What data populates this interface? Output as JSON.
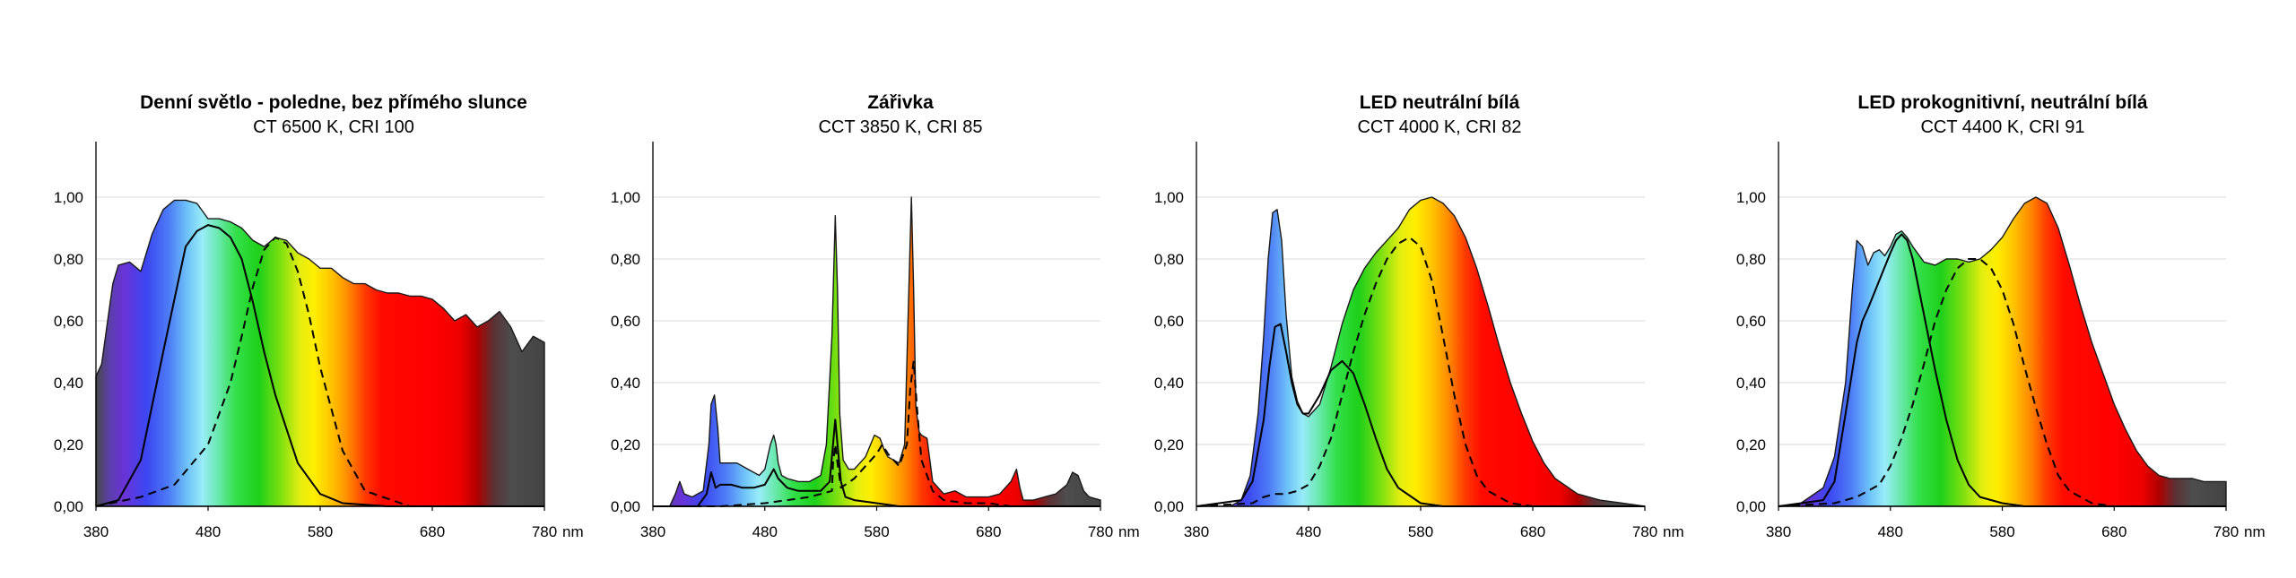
{
  "chart_data": [
    {
      "type": "area",
      "title": "Denní světlo - poledne, bez přímého slunce",
      "subtitle": "CT 6500 K, CRI 100",
      "x_ticks": [
        "380",
        "480",
        "580",
        "680",
        "780"
      ],
      "x_unit": "nm",
      "y_ticks": [
        "0,00",
        "0,20",
        "0,40",
        "0,60",
        "0,80",
        "1,00"
      ],
      "xlim": [
        380,
        780
      ],
      "ylim": [
        0,
        1.15
      ],
      "grid": true,
      "spectrum": {
        "x": [
          380,
          385,
          395,
          400,
          410,
          420,
          430,
          440,
          450,
          460,
          470,
          480,
          490,
          500,
          510,
          520,
          530,
          540,
          550,
          560,
          570,
          580,
          590,
          600,
          610,
          620,
          630,
          640,
          650,
          660,
          670,
          680,
          690,
          700,
          710,
          720,
          730,
          740,
          750,
          760,
          770,
          780
        ],
        "y": [
          0.42,
          0.46,
          0.72,
          0.78,
          0.79,
          0.76,
          0.88,
          0.96,
          0.99,
          0.99,
          0.98,
          0.93,
          0.93,
          0.92,
          0.9,
          0.86,
          0.84,
          0.87,
          0.86,
          0.82,
          0.8,
          0.77,
          0.77,
          0.74,
          0.72,
          0.72,
          0.7,
          0.69,
          0.69,
          0.68,
          0.68,
          0.67,
          0.64,
          0.6,
          0.62,
          0.58,
          0.6,
          0.63,
          0.58,
          0.5,
          0.55,
          0.53
        ]
      },
      "curve_solid": {
        "x": [
          380,
          400,
          420,
          440,
          460,
          470,
          480,
          490,
          500,
          510,
          520,
          530,
          540,
          560,
          580,
          600,
          640,
          680,
          780
        ],
        "y": [
          0.0,
          0.02,
          0.15,
          0.5,
          0.84,
          0.89,
          0.91,
          0.9,
          0.87,
          0.8,
          0.66,
          0.5,
          0.36,
          0.14,
          0.04,
          0.01,
          0.0,
          0.0,
          0.0
        ]
      },
      "curve_dashed": {
        "x": [
          380,
          420,
          450,
          480,
          500,
          510,
          520,
          530,
          540,
          550,
          560,
          570,
          580,
          600,
          620,
          660,
          780
        ],
        "y": [
          0.0,
          0.03,
          0.07,
          0.2,
          0.4,
          0.55,
          0.71,
          0.83,
          0.87,
          0.85,
          0.76,
          0.62,
          0.45,
          0.18,
          0.05,
          0.0,
          0.0
        ]
      }
    },
    {
      "type": "area",
      "title": "Zářivka",
      "subtitle": "CCT 3850 K, CRI 85",
      "x_ticks": [
        "380",
        "480",
        "580",
        "680",
        "780"
      ],
      "x_unit": "nm",
      "y_ticks": [
        "0,00",
        "0,20",
        "0,40",
        "0,60",
        "0,80",
        "1,00"
      ],
      "xlim": [
        380,
        780
      ],
      "ylim": [
        0,
        1.15
      ],
      "grid": true,
      "spectrum": {
        "x": [
          380,
          395,
          400,
          404,
          408,
          415,
          425,
          430,
          432,
          435,
          438,
          440,
          445,
          455,
          465,
          475,
          480,
          485,
          488,
          490,
          492,
          495,
          500,
          510,
          520,
          530,
          535,
          540,
          543,
          545,
          547,
          550,
          555,
          560,
          570,
          578,
          583,
          587,
          590,
          595,
          600,
          605,
          608,
          611,
          613,
          615,
          618,
          620,
          625,
          630,
          640,
          650,
          660,
          670,
          680,
          690,
          700,
          705,
          708,
          711,
          715,
          720,
          730,
          740,
          750,
          755,
          760,
          765,
          770,
          780
        ],
        "y": [
          0.0,
          0.0,
          0.04,
          0.08,
          0.04,
          0.03,
          0.05,
          0.2,
          0.33,
          0.36,
          0.25,
          0.14,
          0.14,
          0.14,
          0.12,
          0.1,
          0.12,
          0.2,
          0.23,
          0.2,
          0.14,
          0.1,
          0.09,
          0.08,
          0.08,
          0.1,
          0.2,
          0.55,
          0.94,
          0.7,
          0.3,
          0.15,
          0.12,
          0.12,
          0.16,
          0.23,
          0.22,
          0.18,
          0.16,
          0.15,
          0.14,
          0.2,
          0.6,
          1.0,
          0.7,
          0.32,
          0.24,
          0.23,
          0.22,
          0.08,
          0.04,
          0.05,
          0.03,
          0.03,
          0.03,
          0.04,
          0.08,
          0.12,
          0.06,
          0.02,
          0.02,
          0.02,
          0.03,
          0.04,
          0.07,
          0.11,
          0.1,
          0.05,
          0.03,
          0.02
        ]
      },
      "curve_solid": {
        "x": [
          380,
          420,
          428,
          432,
          436,
          440,
          450,
          460,
          470,
          480,
          488,
          492,
          500,
          510,
          520,
          530,
          538,
          541,
          543,
          545,
          548,
          552,
          560,
          580,
          600,
          640,
          780
        ],
        "y": [
          0.0,
          0.0,
          0.04,
          0.11,
          0.06,
          0.07,
          0.07,
          0.06,
          0.06,
          0.07,
          0.12,
          0.09,
          0.06,
          0.05,
          0.05,
          0.05,
          0.08,
          0.2,
          0.28,
          0.2,
          0.08,
          0.03,
          0.02,
          0.01,
          0.0,
          0.0,
          0.0
        ]
      },
      "curve_dashed": {
        "x": [
          380,
          440,
          480,
          500,
          520,
          540,
          541,
          543,
          545,
          548,
          560,
          580,
          585,
          590,
          600,
          607,
          610,
          613,
          616,
          620,
          625,
          630,
          640,
          660,
          680,
          700,
          780
        ],
        "y": [
          0.0,
          0.0,
          0.01,
          0.02,
          0.03,
          0.05,
          0.14,
          0.2,
          0.14,
          0.06,
          0.09,
          0.17,
          0.2,
          0.17,
          0.13,
          0.2,
          0.38,
          0.47,
          0.32,
          0.15,
          0.1,
          0.05,
          0.02,
          0.01,
          0.01,
          0.0,
          0.0
        ]
      }
    },
    {
      "type": "area",
      "title": "LED neutrální bílá",
      "subtitle": "CCT 4000 K,  CRI 82",
      "x_ticks": [
        "380",
        "480",
        "580",
        "680",
        "780"
      ],
      "x_unit": "nm",
      "y_ticks": [
        "0,00",
        "0,20",
        "0,40",
        "0,60",
        "0,80",
        "1,00"
      ],
      "xlim": [
        380,
        780
      ],
      "ylim": [
        0,
        1.15
      ],
      "grid": true,
      "spectrum": {
        "x": [
          380,
          410,
          420,
          428,
          435,
          440,
          444,
          448,
          452,
          456,
          460,
          465,
          470,
          475,
          480,
          490,
          500,
          510,
          520,
          530,
          540,
          550,
          560,
          570,
          580,
          590,
          600,
          610,
          620,
          630,
          640,
          650,
          660,
          670,
          680,
          690,
          700,
          720,
          740,
          760,
          780
        ],
        "y": [
          0.0,
          0.0,
          0.02,
          0.1,
          0.3,
          0.55,
          0.8,
          0.95,
          0.96,
          0.86,
          0.62,
          0.42,
          0.34,
          0.3,
          0.29,
          0.33,
          0.45,
          0.59,
          0.7,
          0.77,
          0.82,
          0.86,
          0.9,
          0.96,
          0.99,
          1.0,
          0.98,
          0.94,
          0.87,
          0.77,
          0.65,
          0.52,
          0.4,
          0.3,
          0.21,
          0.14,
          0.09,
          0.04,
          0.02,
          0.01,
          0.0
        ]
      },
      "curve_solid": {
        "x": [
          380,
          420,
          430,
          440,
          445,
          450,
          455,
          460,
          465,
          470,
          475,
          480,
          490,
          500,
          510,
          520,
          530,
          540,
          550,
          560,
          580,
          600,
          620,
          780
        ],
        "y": [
          0.0,
          0.02,
          0.08,
          0.28,
          0.45,
          0.58,
          0.59,
          0.5,
          0.4,
          0.33,
          0.3,
          0.3,
          0.36,
          0.44,
          0.47,
          0.43,
          0.33,
          0.22,
          0.12,
          0.06,
          0.01,
          0.0,
          0.0,
          0.0
        ]
      },
      "curve_dashed": {
        "x": [
          380,
          430,
          440,
          450,
          460,
          470,
          480,
          490,
          500,
          510,
          520,
          530,
          540,
          550,
          560,
          570,
          580,
          590,
          600,
          610,
          620,
          630,
          640,
          660,
          680,
          780
        ],
        "y": [
          0.0,
          0.01,
          0.03,
          0.04,
          0.04,
          0.05,
          0.07,
          0.13,
          0.22,
          0.36,
          0.5,
          0.62,
          0.72,
          0.8,
          0.85,
          0.87,
          0.84,
          0.73,
          0.55,
          0.36,
          0.2,
          0.1,
          0.05,
          0.01,
          0.0,
          0.0
        ]
      }
    },
    {
      "type": "area",
      "title": "LED prokognitivní, neutrální bílá",
      "subtitle": "CCT 4400 K, CRI 91",
      "x_ticks": [
        "380",
        "480",
        "580",
        "680",
        "780"
      ],
      "x_unit": "nm",
      "y_ticks": [
        "0,00",
        "0,20",
        "0,40",
        "0,60",
        "0,80",
        "1,00"
      ],
      "xlim": [
        380,
        780
      ],
      "ylim": [
        0,
        1.15
      ],
      "grid": true,
      "spectrum": {
        "x": [
          380,
          400,
          420,
          430,
          440,
          446,
          450,
          455,
          460,
          465,
          470,
          475,
          480,
          485,
          490,
          495,
          500,
          510,
          520,
          530,
          540,
          550,
          560,
          570,
          580,
          590,
          600,
          610,
          620,
          630,
          640,
          650,
          660,
          670,
          680,
          690,
          700,
          710,
          720,
          730,
          740,
          750,
          760,
          770,
          780
        ],
        "y": [
          0.0,
          0.01,
          0.06,
          0.16,
          0.4,
          0.7,
          0.86,
          0.84,
          0.78,
          0.82,
          0.83,
          0.81,
          0.84,
          0.88,
          0.89,
          0.87,
          0.84,
          0.79,
          0.78,
          0.8,
          0.8,
          0.79,
          0.8,
          0.83,
          0.87,
          0.93,
          0.98,
          1.0,
          0.98,
          0.9,
          0.78,
          0.65,
          0.53,
          0.43,
          0.33,
          0.25,
          0.18,
          0.13,
          0.1,
          0.09,
          0.09,
          0.09,
          0.08,
          0.08,
          0.08
        ]
      },
      "curve_solid": {
        "x": [
          380,
          420,
          430,
          440,
          450,
          455,
          460,
          470,
          480,
          485,
          490,
          495,
          500,
          510,
          520,
          530,
          540,
          550,
          560,
          580,
          600,
          780
        ],
        "y": [
          0.0,
          0.02,
          0.08,
          0.3,
          0.53,
          0.6,
          0.64,
          0.73,
          0.82,
          0.86,
          0.88,
          0.86,
          0.8,
          0.62,
          0.44,
          0.28,
          0.15,
          0.07,
          0.03,
          0.01,
          0.0,
          0.0
        ]
      },
      "curve_dashed": {
        "x": [
          380,
          430,
          450,
          470,
          480,
          490,
          500,
          510,
          520,
          530,
          540,
          550,
          560,
          570,
          580,
          590,
          600,
          610,
          620,
          630,
          640,
          660,
          680,
          780
        ],
        "y": [
          0.0,
          0.01,
          0.03,
          0.07,
          0.13,
          0.22,
          0.33,
          0.46,
          0.6,
          0.7,
          0.77,
          0.8,
          0.8,
          0.77,
          0.7,
          0.59,
          0.45,
          0.32,
          0.2,
          0.1,
          0.05,
          0.01,
          0.0,
          0.0
        ]
      }
    }
  ]
}
